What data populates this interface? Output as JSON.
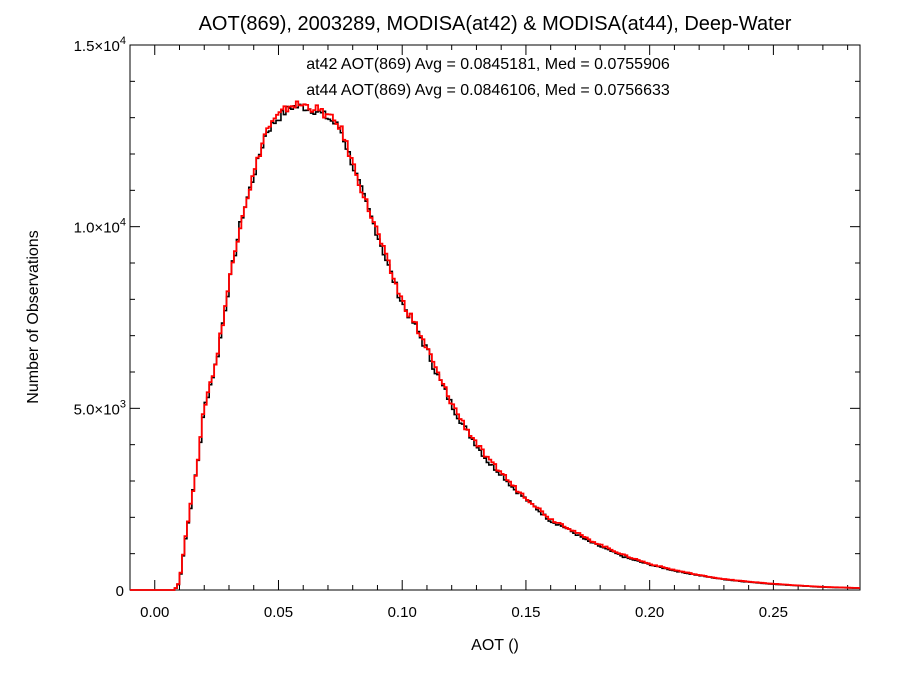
{
  "chart_data": {
    "type": "line",
    "title": "AOT(869), 2003289, MODISA(at42) & MODISA(at44), Deep-Water",
    "xlabel": "AOT ()",
    "ylabel": "Number of Observations",
    "xlim": [
      -0.01,
      0.285
    ],
    "ylim": [
      0,
      15000
    ],
    "x_ticks": [
      "0.00",
      "0.05",
      "0.10",
      "0.15",
      "0.20",
      "0.25"
    ],
    "x_tick_values": [
      0.0,
      0.05,
      0.1,
      0.15,
      0.2,
      0.25
    ],
    "y_ticks": [
      {
        "value": 0,
        "mantissa": "0",
        "exponent": ""
      },
      {
        "value": 5000,
        "mantissa": "5.0×10",
        "exponent": "3"
      },
      {
        "value": 10000,
        "mantissa": "1.0×10",
        "exponent": "4"
      },
      {
        "value": 15000,
        "mantissa": "1.5×10",
        "exponent": "4"
      }
    ],
    "grid": false,
    "step": "histogram",
    "annotations": [
      {
        "text": "at42 AOT(869) Avg = 0.0845181, Med = 0.0755906",
        "color": "#000000"
      },
      {
        "text": "at44 AOT(869) Avg = 0.0846106, Med = 0.0756633",
        "color": "#ff0000"
      }
    ],
    "x": [
      -0.01,
      0.0,
      0.005,
      0.008,
      0.01,
      0.012,
      0.015,
      0.018,
      0.02,
      0.025,
      0.03,
      0.035,
      0.04,
      0.045,
      0.05,
      0.055,
      0.06,
      0.065,
      0.07,
      0.075,
      0.08,
      0.085,
      0.09,
      0.095,
      0.1,
      0.105,
      0.11,
      0.115,
      0.12,
      0.125,
      0.13,
      0.135,
      0.14,
      0.145,
      0.15,
      0.155,
      0.16,
      0.165,
      0.17,
      0.175,
      0.18,
      0.19,
      0.2,
      0.21,
      0.22,
      0.23,
      0.24,
      0.25,
      0.26,
      0.27,
      0.285
    ],
    "series": [
      {
        "name": "at42",
        "color": "#000000",
        "values": [
          0,
          0,
          0,
          0,
          200,
          1200,
          2500,
          3800,
          5000,
          6300,
          8400,
          10200,
          11400,
          12600,
          13000,
          13300,
          13300,
          13200,
          13000,
          12700,
          11700,
          10700,
          9800,
          8800,
          7900,
          7300,
          6600,
          5800,
          5100,
          4500,
          4000,
          3500,
          3200,
          2800,
          2500,
          2200,
          1900,
          1750,
          1550,
          1350,
          1200,
          900,
          700,
          530,
          400,
          290,
          220,
          160,
          120,
          80,
          50
        ]
      },
      {
        "name": "at44",
        "color": "#ff0000",
        "values": [
          0,
          0,
          0,
          0,
          220,
          1250,
          2550,
          3850,
          5050,
          6350,
          8450,
          10250,
          11450,
          12650,
          13050,
          13350,
          13350,
          13250,
          13050,
          12750,
          11750,
          10750,
          9850,
          8850,
          7950,
          7350,
          6650,
          5850,
          5150,
          4550,
          4050,
          3550,
          3250,
          2850,
          2550,
          2250,
          1950,
          1800,
          1600,
          1400,
          1250,
          950,
          720,
          550,
          410,
          300,
          230,
          170,
          125,
          85,
          55
        ]
      }
    ]
  }
}
